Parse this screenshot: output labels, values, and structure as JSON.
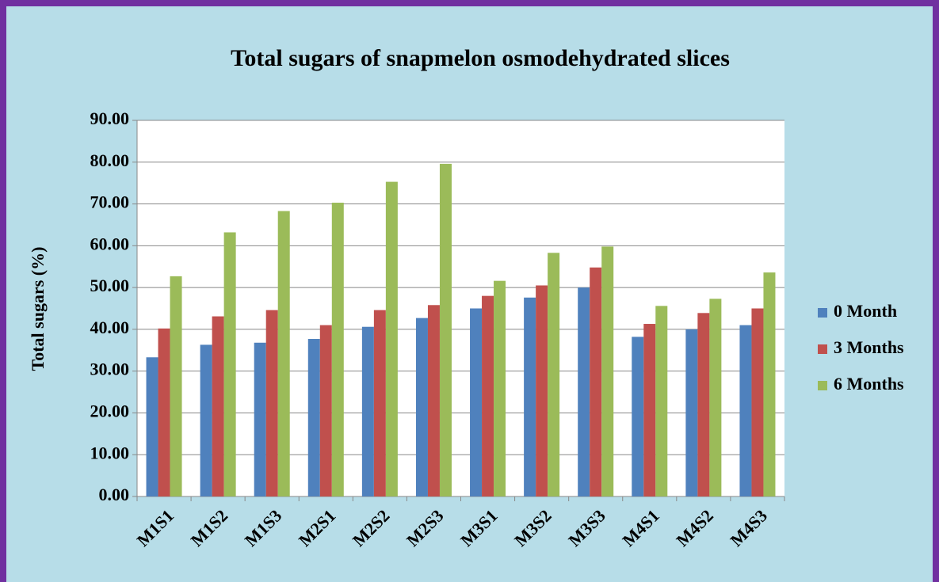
{
  "chart_data": {
    "type": "bar",
    "title": "Total sugars of snapmelon osmodehydrated slices",
    "y_label": "Total sugars (%)",
    "categories": [
      "M1S1",
      "M1S2",
      "M1S3",
      "M2S1",
      "M2S2",
      "M2S3",
      "M3S1",
      "M3S2",
      "M3S3",
      "M4S1",
      "M4S2",
      "M4S3"
    ],
    "series": [
      {
        "name": "0 Month",
        "color": "#4f81bd",
        "values": [
          33.3,
          36.3,
          36.8,
          37.7,
          40.6,
          42.7,
          45.0,
          47.6,
          50.0,
          38.2,
          40.0,
          41.0
        ]
      },
      {
        "name": "3 Months",
        "color": "#c0504d",
        "values": [
          40.2,
          43.1,
          44.6,
          41.0,
          44.6,
          45.8,
          48.0,
          50.5,
          54.8,
          41.3,
          43.9,
          45.0
        ]
      },
      {
        "name": "6 Months",
        "color": "#9bbb59",
        "values": [
          52.7,
          63.2,
          68.3,
          70.3,
          75.3,
          79.6,
          51.6,
          58.3,
          59.8,
          45.6,
          47.3,
          53.6
        ]
      }
    ],
    "ylim": [
      0,
      90
    ],
    "yticks": [
      {
        "value": 0,
        "label": "0.00"
      },
      {
        "value": 10,
        "label": "10.00"
      },
      {
        "value": 20,
        "label": "20.00"
      },
      {
        "value": 30,
        "label": "30.00"
      },
      {
        "value": 40,
        "label": "40.00"
      },
      {
        "value": 50,
        "label": "50.00"
      },
      {
        "value": 60,
        "label": "60.00"
      },
      {
        "value": 70,
        "label": "70.00"
      },
      {
        "value": 80,
        "label": "80.00"
      },
      {
        "value": 90,
        "label": "90.00"
      }
    ],
    "grid": true,
    "legend": "right"
  }
}
